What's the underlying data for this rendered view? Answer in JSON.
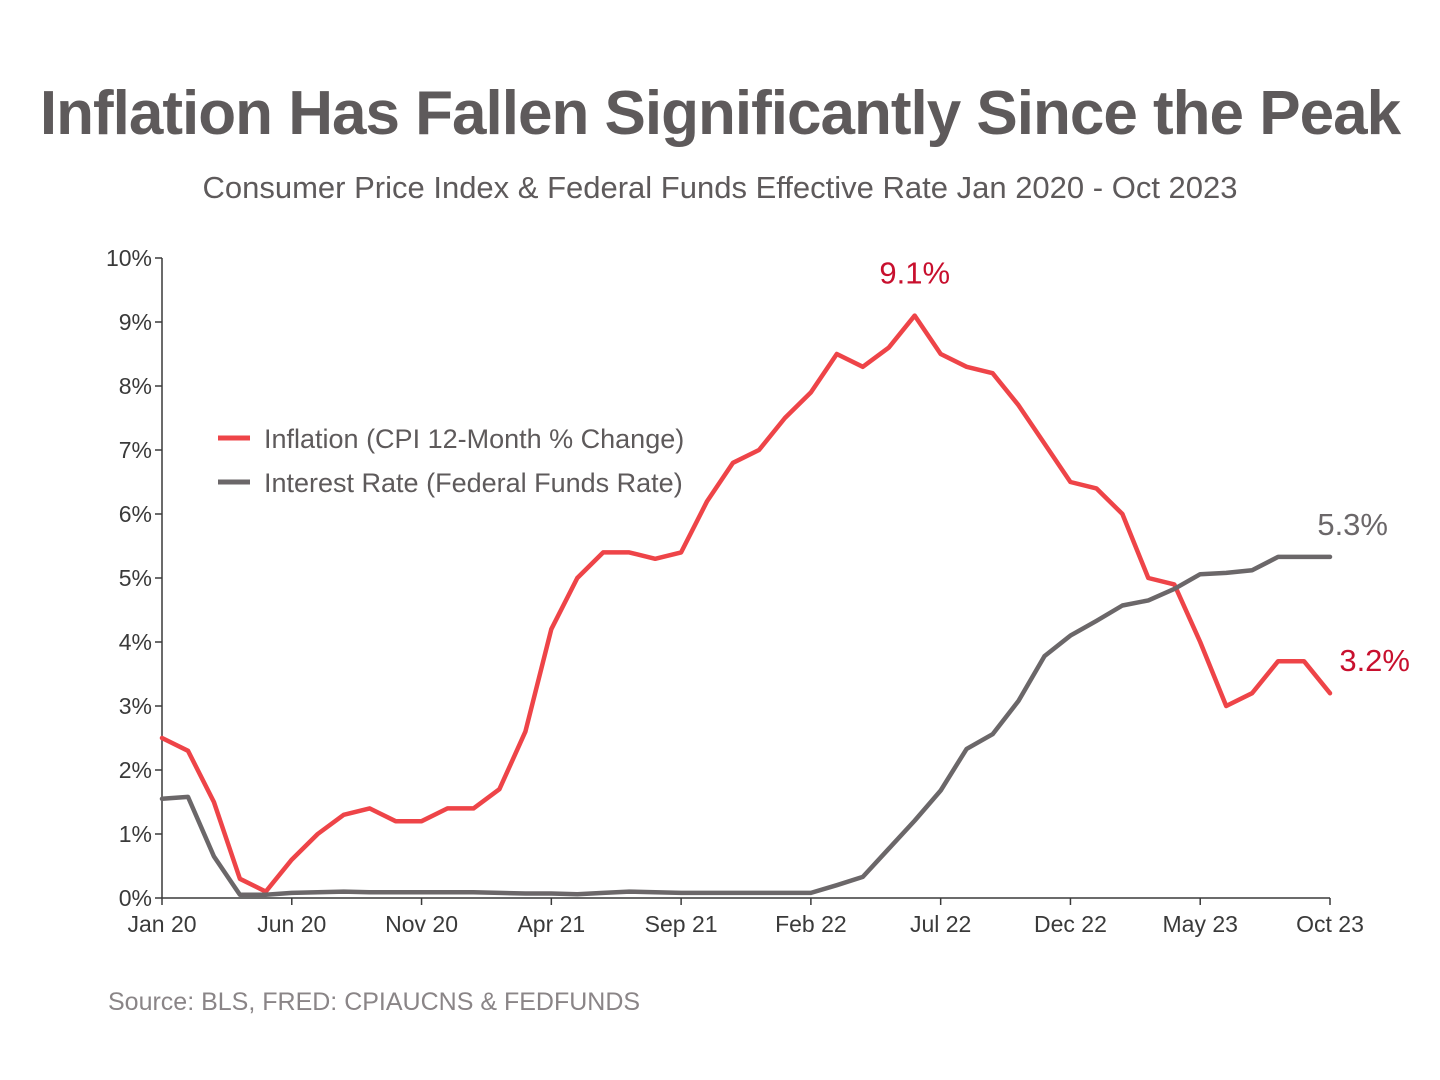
{
  "chart_data": {
    "type": "line",
    "title": "Inflation Has Fallen Significantly Since the Peak",
    "subtitle": "Consumer Price Index & Federal Funds Effective Rate Jan 2020 - Oct 2023",
    "source": "Source: BLS, FRED: CPIAUCNS & FEDFUNDS",
    "xlabel": "",
    "ylabel": "",
    "ylim": [
      0,
      10
    ],
    "y_ticks": [
      "0%",
      "1%",
      "2%",
      "3%",
      "4%",
      "5%",
      "6%",
      "7%",
      "8%",
      "9%",
      "10%"
    ],
    "x_ticks": [
      {
        "label": "Jan 20",
        "index": 0
      },
      {
        "label": "Jun 20",
        "index": 5
      },
      {
        "label": "Nov 20",
        "index": 10
      },
      {
        "label": "Apr 21",
        "index": 15
      },
      {
        "label": "Sep 21",
        "index": 20
      },
      {
        "label": "Feb 22",
        "index": 25
      },
      {
        "label": "Jul 22",
        "index": 30
      },
      {
        "label": "Dec 22",
        "index": 35
      },
      {
        "label": "May 23",
        "index": 40
      },
      {
        "label": "Oct 23",
        "index": 45
      }
    ],
    "legend_position": "top-left",
    "grid": false,
    "series": [
      {
        "name": "Inflation (CPI 12-Month % Change)",
        "color": "#ee4448",
        "values": [
          2.5,
          2.3,
          1.5,
          0.3,
          0.1,
          0.6,
          1.0,
          1.3,
          1.4,
          1.2,
          1.2,
          1.4,
          1.4,
          1.7,
          2.6,
          4.2,
          5.0,
          5.4,
          5.4,
          5.3,
          5.4,
          6.2,
          6.8,
          7.0,
          7.5,
          7.9,
          8.5,
          8.3,
          8.6,
          9.1,
          8.5,
          8.3,
          8.2,
          7.7,
          7.1,
          6.5,
          6.4,
          6.0,
          5.0,
          4.9,
          4.0,
          3.0,
          3.2,
          3.7,
          3.7,
          3.2
        ]
      },
      {
        "name": "Interest Rate (Federal Funds Rate)",
        "color": "#6b6769",
        "values": [
          1.55,
          1.58,
          0.65,
          0.05,
          0.05,
          0.08,
          0.09,
          0.1,
          0.09,
          0.09,
          0.09,
          0.09,
          0.09,
          0.08,
          0.07,
          0.07,
          0.06,
          0.08,
          0.1,
          0.09,
          0.08,
          0.08,
          0.08,
          0.08,
          0.08,
          0.08,
          0.2,
          0.33,
          0.77,
          1.21,
          1.68,
          2.33,
          2.56,
          3.08,
          3.78,
          4.1,
          4.33,
          4.57,
          4.65,
          4.83,
          5.06,
          5.08,
          5.12,
          5.33,
          5.33,
          5.33
        ]
      }
    ],
    "annotations": [
      {
        "text": "9.1%",
        "series": 0,
        "index": 29,
        "color": "#c8102e"
      },
      {
        "text": "5.3%",
        "series": 1,
        "index": 45,
        "color": "#6b6769"
      },
      {
        "text": "3.2%",
        "series": 0,
        "index": 45,
        "color": "#c8102e"
      }
    ]
  }
}
